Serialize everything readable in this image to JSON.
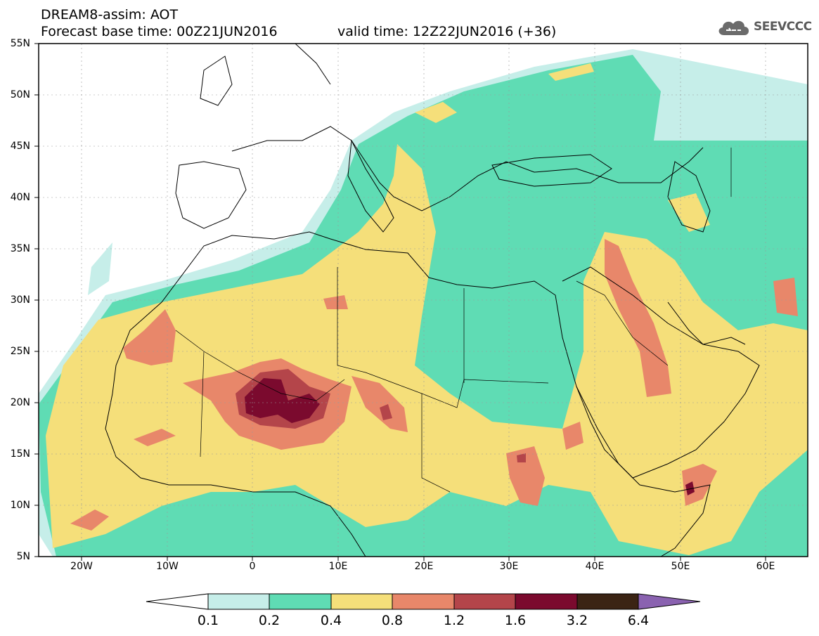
{
  "title": {
    "line1": "DREAM8-assim: AOT",
    "line2": "Forecast base time: 00Z21JUN2016",
    "valid": "valid time: 12Z22JUN2016 (+36)"
  },
  "logo": {
    "text": "SEEVCCC",
    "icon": "cloud-icon"
  },
  "map": {
    "lat_labels": [
      "55N",
      "50N",
      "45N",
      "40N",
      "35N",
      "30N",
      "25N",
      "20N",
      "15N",
      "10N",
      "5N"
    ],
    "lon_labels": [
      "20W",
      "10W",
      "0",
      "10E",
      "20E",
      "30E",
      "40E",
      "50E",
      "60E"
    ],
    "lat_range": [
      5,
      55
    ],
    "lon_range": [
      -25,
      65
    ],
    "grid": true,
    "color_scale": [
      {
        "from": 0.1,
        "to": 0.2,
        "color": "#c6eee9"
      },
      {
        "from": 0.2,
        "to": 0.4,
        "color": "#5fdcb4"
      },
      {
        "from": 0.4,
        "to": 0.8,
        "color": "#f5df7a"
      },
      {
        "from": 0.8,
        "to": 1.2,
        "color": "#e8876a"
      },
      {
        "from": 1.2,
        "to": 1.6,
        "color": "#b4454a"
      },
      {
        "from": 1.6,
        "to": 3.2,
        "color": "#7b0a2e"
      },
      {
        "from": 3.2,
        "to": 6.4,
        "color": "#3b2414"
      }
    ]
  },
  "colorbar": {
    "labels": [
      "0.1",
      "0.2",
      "0.4",
      "0.8",
      "1.2",
      "1.6",
      "3.2",
      "6.4"
    ],
    "below_color": "#ffffff",
    "above_color": "#8a62b0"
  }
}
